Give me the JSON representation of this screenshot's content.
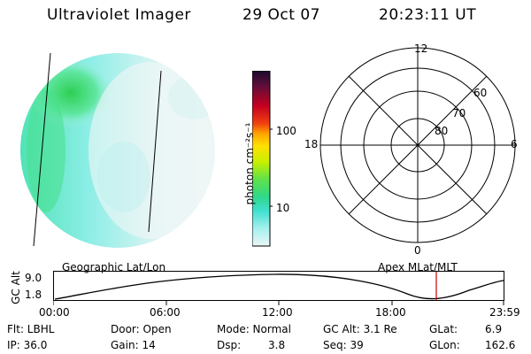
{
  "header": {
    "instrument": "Ultraviolet Imager",
    "date": "29 Oct 07",
    "time": "20:23:11 UT"
  },
  "colorbar": {
    "unit_label": "photon cm⁻²s⁻¹",
    "tick_100": "100",
    "tick_10": "10"
  },
  "polar_plot": {
    "label_top": "12",
    "label_left": "18",
    "label_right": "6",
    "label_bottom": "0",
    "ring_60": "60",
    "ring_70": "70",
    "ring_80": "80"
  },
  "timeline": {
    "left_label": "Geographic Lat/Lon",
    "right_label": "Apex MLat/MLT",
    "y_axis_label": "GC Alt",
    "y_max": "9.0",
    "y_min": "1.8",
    "ticks": [
      "00:00",
      "06:00",
      "12:00",
      "18:00",
      "23:59"
    ]
  },
  "info": {
    "filter": "Flt: LBHL",
    "ip": "IP: 36.0",
    "door": "Door: Open",
    "gain": "Gain: 14",
    "mode": "Mode: Normal",
    "dsp_label": "Dsp:",
    "dsp_value": "3.8",
    "gc_alt": "GC Alt: 3.1 Re",
    "seq": "Seq: 39",
    "glat_label": "GLat:",
    "glat_value": "6.9",
    "glon_label": "GLon:",
    "glon_value": "162.6"
  },
  "colors": {
    "accent_line": "#cc0000",
    "aurora_green": "#3ddc6a",
    "aurora_cyan": "#7ee8e8"
  }
}
